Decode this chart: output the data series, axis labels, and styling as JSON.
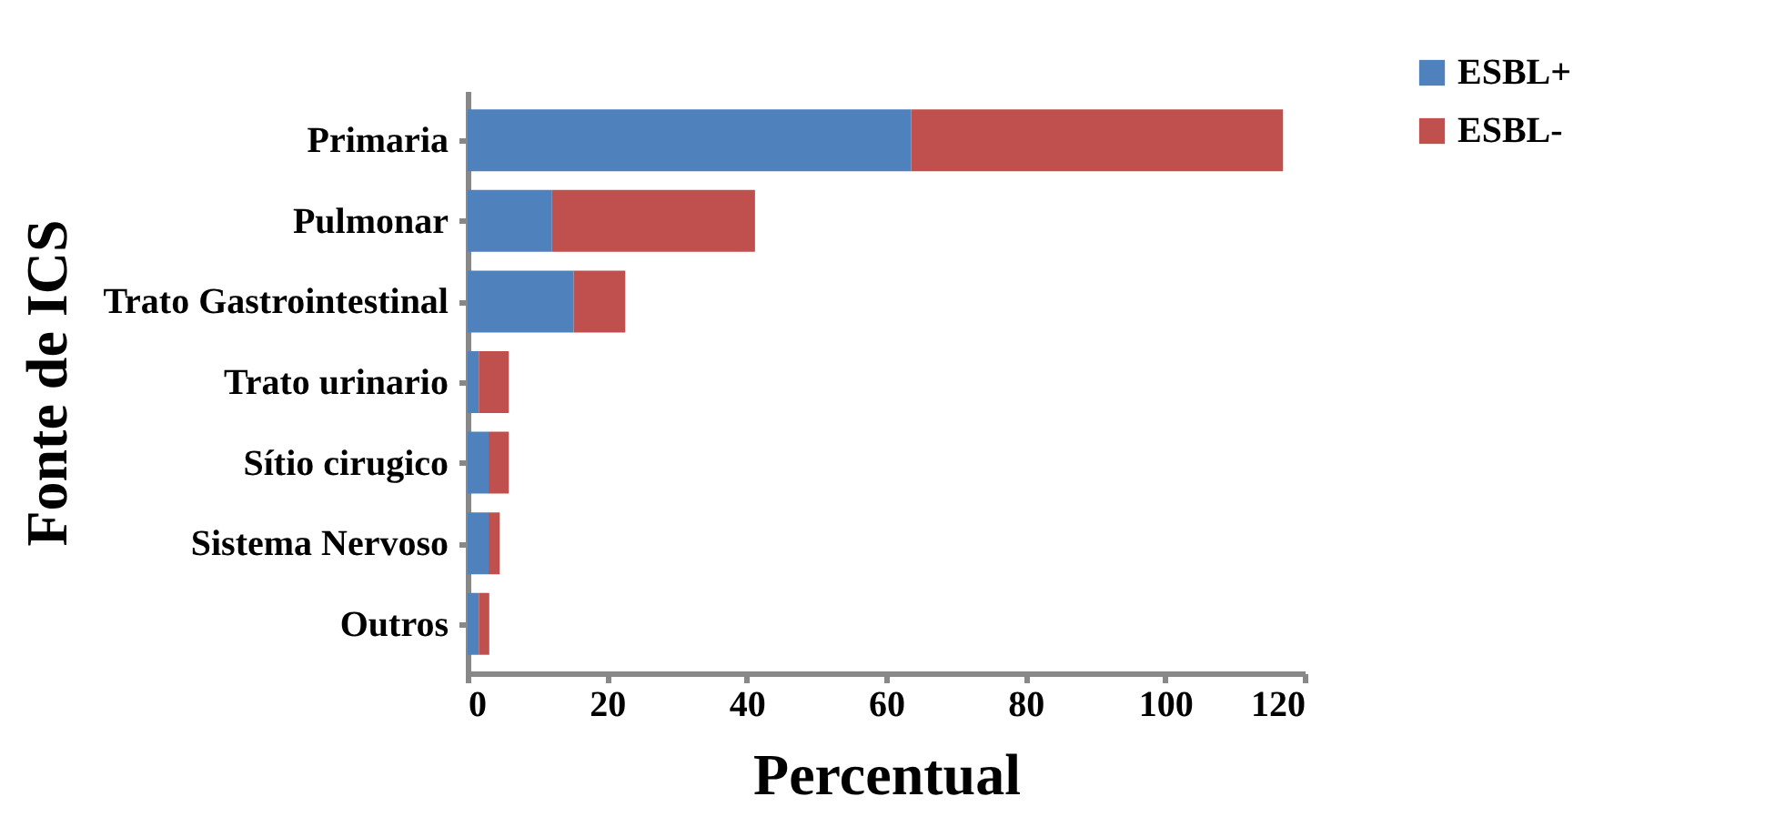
{
  "chart_data": {
    "type": "bar",
    "orientation": "horizontal",
    "stacked": true,
    "categories": [
      "Primaria",
      "Pulmonar",
      "Trato Gastrointestinal",
      "Trato urinario",
      "Sítio cirugico",
      "Sistema Nervoso",
      "Outros"
    ],
    "series": [
      {
        "name": "ESBL+",
        "color": "#4f81bd",
        "values": [
          63.6,
          12.1,
          15.2,
          1.6,
          3.0,
          3.0,
          1.6
        ]
      },
      {
        "name": "ESBL-",
        "color": "#c0504d",
        "values": [
          53.3,
          29.1,
          7.4,
          4.3,
          2.9,
          1.6,
          1.5
        ]
      }
    ],
    "xlabel": "Percentual",
    "ylabel": "Fonte de ICS",
    "xlim": [
      0,
      120
    ],
    "xticks": [
      0,
      20,
      40,
      60,
      80,
      100,
      120
    ],
    "grid": false,
    "legend": "top right"
  }
}
